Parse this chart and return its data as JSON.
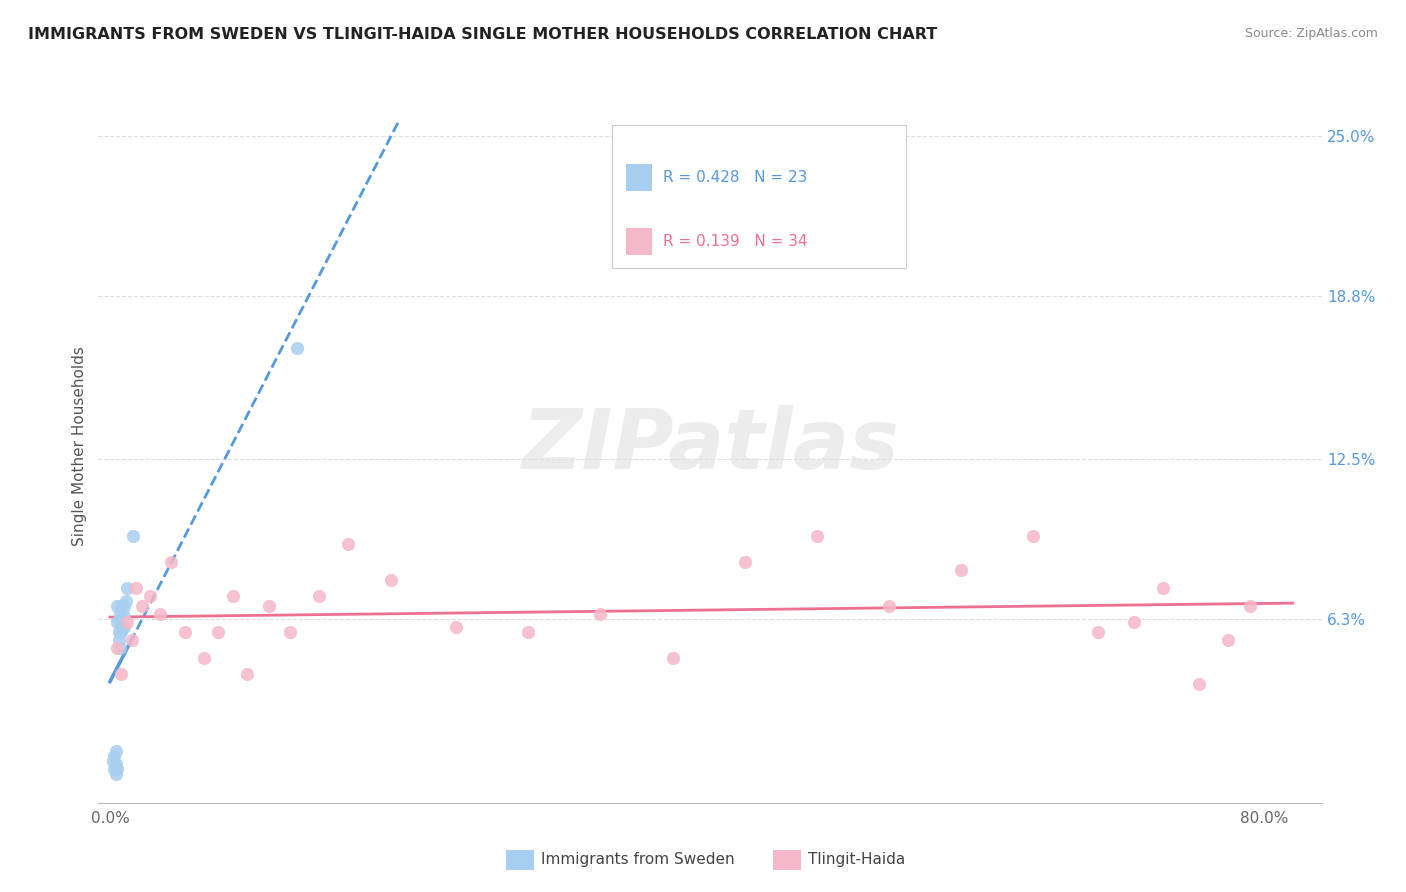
{
  "title": "IMMIGRANTS FROM SWEDEN VS TLINGIT-HAIDA SINGLE MOTHER HOUSEHOLDS CORRELATION CHART",
  "source": "Source: ZipAtlas.com",
  "ylabel_label": "Single Mother Households",
  "legend_blue_r": "0.428",
  "legend_blue_n": "23",
  "legend_pink_r": "0.139",
  "legend_pink_n": "34",
  "legend_label_blue": "Immigrants from Sweden",
  "legend_label_pink": "Tlingit-Haida",
  "watermark": "ZIPatlas",
  "blue_color": "#a8cef0",
  "pink_color": "#f5b8c8",
  "blue_line_color": "#5599dd",
  "pink_line_color": "#ee7090",
  "xlim": [
    -0.008,
    0.84
  ],
  "ylim": [
    -0.008,
    0.268
  ],
  "xtick_vals": [
    0.0,
    0.2,
    0.4,
    0.6,
    0.8
  ],
  "xtick_labels": [
    "0.0%",
    "",
    "",
    "",
    "80.0%"
  ],
  "ytick_vals": [
    0.063,
    0.125,
    0.188,
    0.25
  ],
  "ytick_labels": [
    "6.3%",
    "12.5%",
    "18.8%",
    "25.0%"
  ],
  "blue_x": [
    0.002,
    0.003,
    0.003,
    0.004,
    0.004,
    0.004,
    0.005,
    0.005,
    0.005,
    0.006,
    0.006,
    0.007,
    0.007,
    0.007,
    0.008,
    0.008,
    0.009,
    0.01,
    0.01,
    0.011,
    0.012,
    0.016,
    0.13
  ],
  "blue_y": [
    0.008,
    0.005,
    0.01,
    0.003,
    0.007,
    0.012,
    0.005,
    0.068,
    0.062,
    0.055,
    0.058,
    0.062,
    0.052,
    0.065,
    0.058,
    0.068,
    0.065,
    0.06,
    0.068,
    0.07,
    0.075,
    0.095,
    0.168
  ],
  "pink_x": [
    0.005,
    0.008,
    0.012,
    0.015,
    0.018,
    0.022,
    0.028,
    0.035,
    0.042,
    0.052,
    0.065,
    0.075,
    0.085,
    0.095,
    0.11,
    0.125,
    0.145,
    0.165,
    0.195,
    0.24,
    0.29,
    0.34,
    0.39,
    0.44,
    0.49,
    0.54,
    0.59,
    0.64,
    0.685,
    0.71,
    0.73,
    0.755,
    0.775,
    0.79
  ],
  "pink_y": [
    0.052,
    0.042,
    0.062,
    0.055,
    0.075,
    0.068,
    0.072,
    0.065,
    0.085,
    0.058,
    0.048,
    0.058,
    0.072,
    0.042,
    0.068,
    0.058,
    0.072,
    0.092,
    0.078,
    0.06,
    0.058,
    0.065,
    0.048,
    0.085,
    0.095,
    0.068,
    0.082,
    0.095,
    0.058,
    0.062,
    0.075,
    0.038,
    0.055,
    0.068
  ]
}
